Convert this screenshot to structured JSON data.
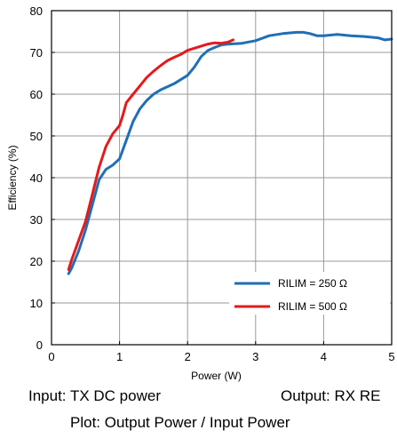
{
  "chart_data": {
    "type": "line",
    "title": "",
    "xlabel": "Power (W)",
    "ylabel": "Efficiency (%)",
    "xlim": [
      0,
      5
    ],
    "ylim": [
      0,
      80
    ],
    "x_ticks": [
      "0",
      "1",
      "2",
      "3",
      "4",
      "5"
    ],
    "y_ticks": [
      "0",
      "10",
      "20",
      "30",
      "40",
      "50",
      "60",
      "70",
      "80"
    ],
    "grid": true,
    "legend_position": "lower-right",
    "series": [
      {
        "name": "RILIM = 250 Ω",
        "color": "#1f6fb5",
        "points": [
          [
            0.25,
            17
          ],
          [
            0.3,
            18.5
          ],
          [
            0.4,
            22.5
          ],
          [
            0.5,
            27.5
          ],
          [
            0.6,
            33.5
          ],
          [
            0.7,
            39.5
          ],
          [
            0.8,
            42
          ],
          [
            0.9,
            43
          ],
          [
            1.0,
            44.5
          ],
          [
            1.1,
            49
          ],
          [
            1.2,
            53.5
          ],
          [
            1.3,
            56.5
          ],
          [
            1.4,
            58.5
          ],
          [
            1.5,
            60
          ],
          [
            1.6,
            61
          ],
          [
            1.8,
            62.5
          ],
          [
            2.0,
            64.5
          ],
          [
            2.1,
            66.5
          ],
          [
            2.2,
            69
          ],
          [
            2.3,
            70.5
          ],
          [
            2.4,
            71.2
          ],
          [
            2.5,
            71.8
          ],
          [
            2.6,
            72
          ],
          [
            2.8,
            72.2
          ],
          [
            3.0,
            72.8
          ],
          [
            3.2,
            74
          ],
          [
            3.4,
            74.5
          ],
          [
            3.6,
            74.8
          ],
          [
            3.7,
            74.8
          ],
          [
            3.8,
            74.5
          ],
          [
            3.9,
            74
          ],
          [
            4.0,
            74
          ],
          [
            4.2,
            74.3
          ],
          [
            4.4,
            74
          ],
          [
            4.6,
            73.8
          ],
          [
            4.8,
            73.5
          ],
          [
            4.9,
            73
          ],
          [
            5.0,
            73.2
          ]
        ]
      },
      {
        "name": "RILIM = 500 Ω",
        "color": "#e31a1c",
        "points": [
          [
            0.25,
            18
          ],
          [
            0.3,
            20.5
          ],
          [
            0.4,
            25
          ],
          [
            0.5,
            29.5
          ],
          [
            0.6,
            36
          ],
          [
            0.7,
            42.5
          ],
          [
            0.8,
            47.5
          ],
          [
            0.9,
            50.5
          ],
          [
            1.0,
            52.5
          ],
          [
            1.05,
            55
          ],
          [
            1.1,
            58
          ],
          [
            1.2,
            60
          ],
          [
            1.3,
            62
          ],
          [
            1.4,
            64
          ],
          [
            1.5,
            65.5
          ],
          [
            1.6,
            66.8
          ],
          [
            1.7,
            68
          ],
          [
            1.8,
            68.8
          ],
          [
            1.9,
            69.5
          ],
          [
            2.0,
            70.5
          ],
          [
            2.2,
            71.5
          ],
          [
            2.3,
            72
          ],
          [
            2.4,
            72.3
          ],
          [
            2.5,
            72.2
          ],
          [
            2.6,
            72.5
          ],
          [
            2.67,
            73
          ]
        ]
      }
    ]
  },
  "captions": {
    "input": "Input: TX DC power",
    "output": "Output: RX RE",
    "plot": "Plot: Output Power / Input Power"
  }
}
